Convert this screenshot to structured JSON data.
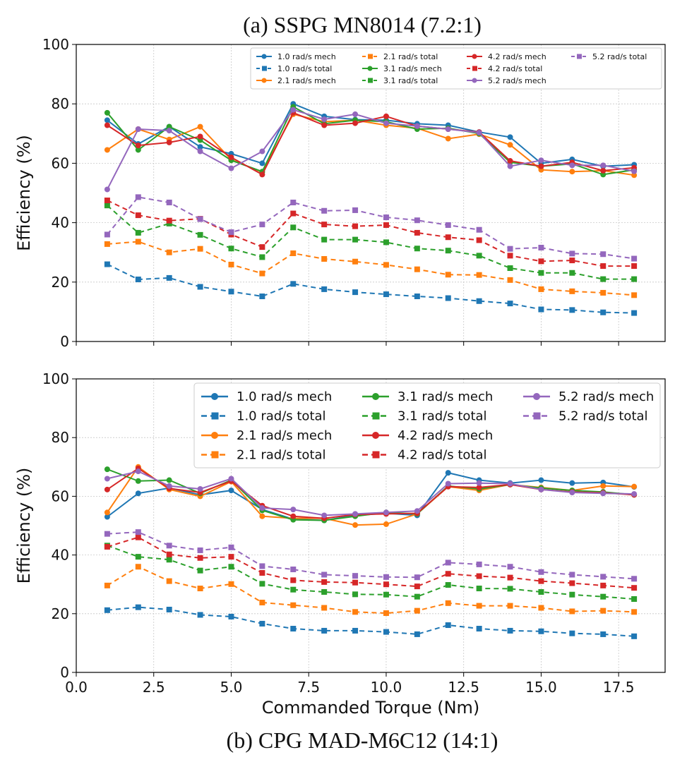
{
  "colors": {
    "1.0": "#1f77b4",
    "2.1": "#ff7f0e",
    "3.1": "#2ca02c",
    "4.2": "#d62728",
    "5.2": "#9467bd"
  },
  "chart_data": [
    {
      "type": "line",
      "title": "(a) SSPG MN8014 (7.2:1)",
      "xlabel": "",
      "ylabel": "Efficiency (%)",
      "xlim": [
        0,
        19
      ],
      "ylim": [
        0,
        100
      ],
      "yticks": [
        "0",
        "20",
        "40",
        "60",
        "80",
        "100"
      ],
      "xticks": [],
      "grid": true,
      "legend_position": "top-right",
      "legend_order": [
        "1.0 rad/s mech",
        "1.0 rad/s total",
        "2.1 rad/s mech",
        "2.1 rad/s total",
        "3.1 rad/s mech",
        "3.1 rad/s total",
        "4.2 rad/s mech",
        "4.2 rad/s total",
        "5.2 rad/s mech",
        "5.2 rad/s total"
      ],
      "x": [
        1,
        2,
        3,
        4,
        5,
        6,
        7,
        8,
        9,
        10,
        11,
        12,
        13,
        14,
        15,
        16,
        17,
        18
      ],
      "series": [
        {
          "name": "1.0 rad/s mech",
          "speed": "1.0",
          "style": "mech",
          "values": [
            74.5,
            66.5,
            72.3,
            65.5,
            63.2,
            60.0,
            80.0,
            75.8,
            74.7,
            74.5,
            73.3,
            72.8,
            70.5,
            68.8,
            60.0,
            61.3,
            59.0,
            59.5
          ]
        },
        {
          "name": "1.0 rad/s total",
          "speed": "1.0",
          "style": "total",
          "values": [
            26.0,
            20.9,
            21.4,
            18.4,
            16.8,
            15.2,
            19.4,
            17.6,
            16.6,
            15.9,
            15.2,
            14.6,
            13.6,
            12.8,
            10.8,
            10.6,
            9.8,
            9.6
          ]
        },
        {
          "name": "2.1 rad/s mech",
          "speed": "2.1",
          "style": "mech",
          "values": [
            64.5,
            71.5,
            68.0,
            72.3,
            61.2,
            57.0,
            76.5,
            74.0,
            74.5,
            72.8,
            71.8,
            68.3,
            69.8,
            66.2,
            57.8,
            57.2,
            57.5,
            56.0
          ]
        },
        {
          "name": "2.1 rad/s total",
          "speed": "2.1",
          "style": "total",
          "values": [
            32.8,
            33.6,
            30.0,
            31.2,
            25.9,
            22.9,
            29.7,
            27.8,
            26.9,
            25.8,
            24.3,
            22.5,
            22.4,
            20.7,
            17.6,
            16.9,
            16.4,
            15.6
          ]
        },
        {
          "name": "3.1 rad/s mech",
          "speed": "3.1",
          "style": "mech",
          "values": [
            77.0,
            64.5,
            72.3,
            67.8,
            61.0,
            57.2,
            79.0,
            73.3,
            74.5,
            74.0,
            71.5,
            71.8,
            70.0,
            60.3,
            59.0,
            59.8,
            56.2,
            57.8
          ]
        },
        {
          "name": "3.1 rad/s total",
          "speed": "3.1",
          "style": "total",
          "values": [
            45.8,
            36.6,
            39.7,
            35.9,
            31.3,
            28.4,
            38.4,
            34.3,
            34.3,
            33.4,
            31.3,
            30.6,
            28.9,
            24.7,
            23.1,
            23.1,
            21.0,
            21.0
          ]
        },
        {
          "name": "4.2 rad/s mech",
          "speed": "4.2",
          "style": "mech",
          "values": [
            72.8,
            66.0,
            67.0,
            69.0,
            62.0,
            56.2,
            77.0,
            72.8,
            73.5,
            75.8,
            72.5,
            71.5,
            70.5,
            60.8,
            59.0,
            60.3,
            57.5,
            58.5
          ]
        },
        {
          "name": "4.2 rad/s total",
          "speed": "4.2",
          "style": "total",
          "values": [
            47.5,
            42.5,
            40.7,
            41.3,
            36.0,
            31.8,
            43.1,
            39.4,
            38.8,
            39.2,
            36.6,
            35.1,
            34.1,
            28.9,
            27.0,
            27.3,
            25.4,
            25.4
          ]
        },
        {
          "name": "5.2 rad/s mech",
          "speed": "5.2",
          "style": "mech",
          "values": [
            51.2,
            71.5,
            71.0,
            64.0,
            58.3,
            64.0,
            78.0,
            74.8,
            76.5,
            73.5,
            72.5,
            71.5,
            70.3,
            59.0,
            61.0,
            59.3,
            59.3,
            57.3
          ]
        },
        {
          "name": "5.2 rad/s total",
          "speed": "5.2",
          "style": "total",
          "values": [
            36.0,
            48.6,
            46.8,
            41.2,
            36.8,
            39.4,
            46.8,
            44.0,
            44.2,
            41.8,
            40.8,
            39.2,
            37.6,
            31.2,
            31.6,
            29.6,
            29.4,
            27.9
          ]
        }
      ]
    },
    {
      "type": "line",
      "title": "(b) CPG MAD-M6C12 (14:1)",
      "xlabel": "Commanded Torque (Nm)",
      "ylabel": "Efficiency (%)",
      "xlim": [
        0,
        19
      ],
      "ylim": [
        0,
        100
      ],
      "yticks": [
        "0",
        "20",
        "40",
        "60",
        "80",
        "100"
      ],
      "xticks": [
        "0.0",
        "2.5",
        "5.0",
        "7.5",
        "10.0",
        "12.5",
        "15.0",
        "17.5"
      ],
      "grid": true,
      "legend_position": "top-right",
      "legend_order": [
        "1.0 rad/s mech",
        "1.0 rad/s total",
        "2.1 rad/s mech",
        "2.1 rad/s total",
        "3.1 rad/s mech",
        "3.1 rad/s total",
        "4.2 rad/s mech",
        "4.2 rad/s total",
        "5.2 rad/s mech",
        "5.2 rad/s total"
      ],
      "x": [
        1,
        2,
        3,
        4,
        5,
        6,
        7,
        8,
        9,
        10,
        11,
        12,
        13,
        14,
        15,
        16,
        17,
        18
      ],
      "series": [
        {
          "name": "1.0 rad/s mech",
          "speed": "1.0",
          "style": "mech",
          "values": [
            53.0,
            61.0,
            62.8,
            60.5,
            62.0,
            55.5,
            52.2,
            51.8,
            53.5,
            54.2,
            53.5,
            68.0,
            65.5,
            64.5,
            65.5,
            64.5,
            64.7,
            63.2
          ]
        },
        {
          "name": "1.0 rad/s total",
          "speed": "1.0",
          "style": "total",
          "values": [
            21.2,
            22.2,
            21.4,
            19.6,
            19.0,
            16.6,
            14.9,
            14.2,
            14.2,
            13.8,
            13.0,
            16.1,
            14.9,
            14.2,
            14.0,
            13.3,
            13.0,
            12.3
          ]
        },
        {
          "name": "2.1 rad/s mech",
          "speed": "2.1",
          "style": "mech",
          "values": [
            54.5,
            70.0,
            62.3,
            60.0,
            65.0,
            53.2,
            52.5,
            52.5,
            50.2,
            50.5,
            54.0,
            63.3,
            62.0,
            64.0,
            63.0,
            62.0,
            63.5,
            63.3
          ]
        },
        {
          "name": "2.1 rad/s total",
          "speed": "2.1",
          "style": "total",
          "values": [
            29.6,
            36.0,
            31.1,
            28.6,
            30.1,
            23.8,
            22.9,
            22.0,
            20.6,
            20.2,
            21.0,
            23.6,
            22.7,
            22.7,
            22.0,
            20.8,
            21.0,
            20.6
          ]
        },
        {
          "name": "3.1 rad/s mech",
          "speed": "3.1",
          "style": "mech",
          "values": [
            69.2,
            65.2,
            65.5,
            61.0,
            65.5,
            55.2,
            52.0,
            51.8,
            53.2,
            54.5,
            54.0,
            63.5,
            62.5,
            64.0,
            62.8,
            62.0,
            61.5,
            60.5
          ]
        },
        {
          "name": "3.1 rad/s total",
          "speed": "3.1",
          "style": "total",
          "values": [
            43.2,
            39.4,
            38.4,
            34.7,
            36.0,
            30.2,
            28.2,
            27.4,
            26.6,
            26.5,
            25.8,
            29.8,
            28.6,
            28.5,
            27.4,
            26.5,
            25.8,
            25.0
          ]
        },
        {
          "name": "4.2 rad/s mech",
          "speed": "4.2",
          "style": "mech",
          "values": [
            62.3,
            69.5,
            62.7,
            61.3,
            65.2,
            56.8,
            53.2,
            52.5,
            53.8,
            54.0,
            54.2,
            63.3,
            63.0,
            64.0,
            62.3,
            61.5,
            61.2,
            60.5
          ]
        },
        {
          "name": "4.2 rad/s total",
          "speed": "4.2",
          "style": "total",
          "values": [
            42.8,
            46.0,
            40.2,
            39.0,
            39.4,
            33.9,
            31.4,
            30.8,
            30.6,
            30.0,
            29.3,
            33.6,
            32.8,
            32.3,
            31.1,
            30.4,
            29.6,
            28.8
          ]
        },
        {
          "name": "5.2 rad/s mech",
          "speed": "5.2",
          "style": "mech",
          "values": [
            66.0,
            68.5,
            63.5,
            62.5,
            66.0,
            56.0,
            55.5,
            53.5,
            54.0,
            54.5,
            55.0,
            64.3,
            64.5,
            64.3,
            62.3,
            61.3,
            61.0,
            60.8
          ]
        },
        {
          "name": "5.2 rad/s total",
          "speed": "5.2",
          "style": "total",
          "values": [
            47.2,
            47.8,
            43.2,
            41.6,
            42.6,
            36.2,
            35.1,
            33.3,
            32.9,
            32.5,
            32.4,
            37.4,
            36.8,
            36.0,
            34.2,
            33.3,
            32.6,
            31.9
          ]
        }
      ]
    }
  ]
}
